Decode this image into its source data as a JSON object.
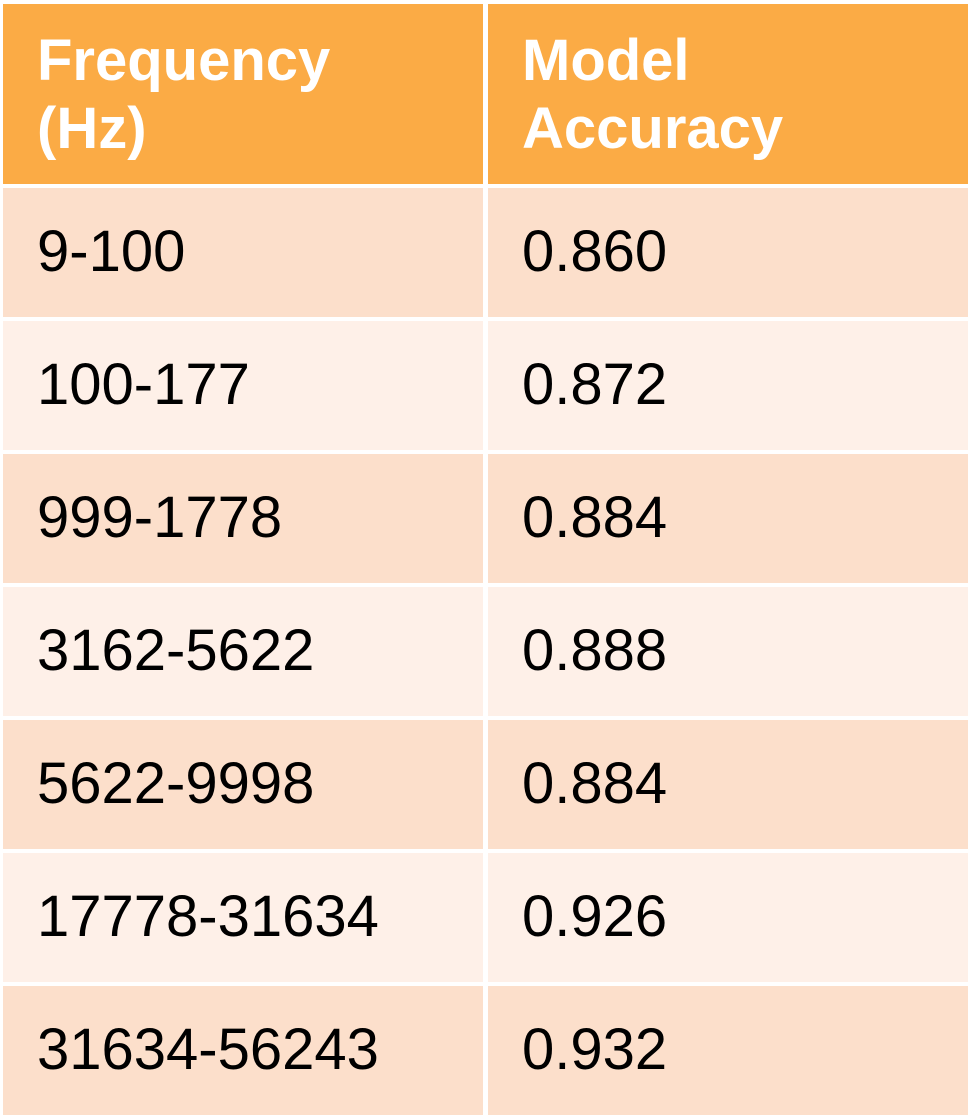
{
  "table": {
    "headers": [
      "Frequency\n(Hz)",
      "Model\nAccuracy"
    ],
    "rows": [
      [
        "9-100",
        "0.860"
      ],
      [
        "100-177",
        "0.872"
      ],
      [
        "999-1778",
        "0.884"
      ],
      [
        "3162-5622",
        "0.888"
      ],
      [
        "5622-9998",
        "0.884"
      ],
      [
        "17778-31634",
        "0.926"
      ],
      [
        "31634-56243",
        "0.932"
      ]
    ]
  },
  "colors": {
    "header_bg": "#FBAB45",
    "row_dark": "#FCDFCB",
    "row_light": "#FEF0E8",
    "header_text": "#FFFFFF"
  }
}
